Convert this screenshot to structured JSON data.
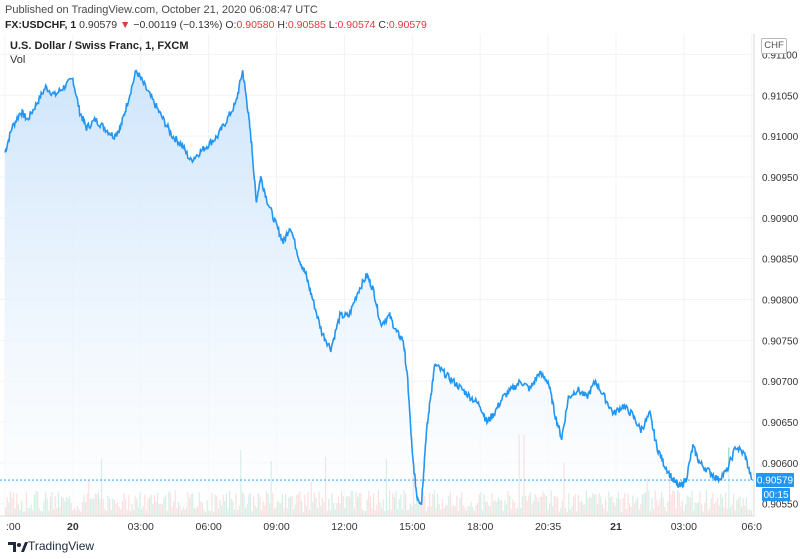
{
  "header": {
    "published": "Published on TradingView.com, October 21, 2020 06:08:47 UTC",
    "symbol": "FX:USDCHF, 1",
    "last": "0.90579",
    "change_arrow": "▼",
    "change": "−0.00119 (−0.13%)",
    "o_label": "O:",
    "o_value": "0.90580",
    "h_label": "H:",
    "h_value": "0.90585",
    "l_label": "L:",
    "l_value": "0.90574",
    "c_label": "C:",
    "c_value": "0.90579"
  },
  "chart_title": "U.S. Dollar / Swiss Franc, 1, FXCM",
  "volume_label": "Vol",
  "currency": "CHF",
  "price_tag": "0.90579",
  "countdown": "00:15",
  "brand": "TradingView",
  "colors": {
    "line": "#2196f3",
    "fill_top": "#cfe5fb",
    "vol_up": "#7fc9b0",
    "vol_down": "#f19b9b",
    "tag_bg": "#2196f3"
  },
  "chart_data": {
    "type": "area",
    "title": "U.S. Dollar / Swiss Franc, 1, FXCM",
    "xlabel": "",
    "ylabel": "",
    "x_ticks": [
      ":00",
      "20",
      "03:00",
      "06:00",
      "09:00",
      "12:00",
      "15:00",
      "18:00",
      "20:35",
      "21",
      "03:00",
      "06:0"
    ],
    "y_ticks": [
      "0.91100",
      "0.91050",
      "0.91000",
      "0.90950",
      "0.90900",
      "0.90850",
      "0.90800",
      "0.90750",
      "0.90700",
      "0.90650",
      "0.90600",
      "0.90550"
    ],
    "ylim": [
      0.90535,
      0.91125
    ],
    "x_range_hours": [
      -3,
      30.1
    ],
    "grid": true,
    "series": [
      {
        "values": [
          [
            -3.0,
            0.9098
          ],
          [
            -2.7,
            0.9101
          ],
          [
            -2.3,
            0.9103
          ],
          [
            -2.0,
            0.9102
          ],
          [
            -1.6,
            0.9104
          ],
          [
            -1.2,
            0.9106
          ],
          [
            -0.8,
            0.9105
          ],
          [
            -0.4,
            0.9106
          ],
          [
            0.0,
            0.9107
          ],
          [
            0.3,
            0.9103
          ],
          [
            0.6,
            0.9101
          ],
          [
            1.0,
            0.9102
          ],
          [
            1.4,
            0.9101
          ],
          [
            1.8,
            0.91
          ],
          [
            2.1,
            0.9101
          ],
          [
            2.4,
            0.9104
          ],
          [
            2.8,
            0.9108
          ],
          [
            3.2,
            0.9106
          ],
          [
            3.6,
            0.9104
          ],
          [
            4.0,
            0.9102
          ],
          [
            4.4,
            0.91
          ],
          [
            4.8,
            0.9099
          ],
          [
            5.2,
            0.9097
          ],
          [
            5.6,
            0.9098
          ],
          [
            6.0,
            0.9099
          ],
          [
            6.4,
            0.91
          ],
          [
            6.8,
            0.9102
          ],
          [
            7.2,
            0.9104
          ],
          [
            7.5,
            0.9108
          ],
          [
            7.7,
            0.9104
          ],
          [
            7.9,
            0.9099
          ],
          [
            8.1,
            0.9092
          ],
          [
            8.3,
            0.9095
          ],
          [
            8.6,
            0.9092
          ],
          [
            9.0,
            0.9089
          ],
          [
            9.3,
            0.9087
          ],
          [
            9.6,
            0.9089
          ],
          [
            10.0,
            0.9085
          ],
          [
            10.3,
            0.9083
          ],
          [
            10.6,
            0.908
          ],
          [
            11.0,
            0.9076
          ],
          [
            11.4,
            0.9074
          ],
          [
            11.8,
            0.9078
          ],
          [
            12.2,
            0.9078
          ],
          [
            12.6,
            0.9081
          ],
          [
            13.0,
            0.9083
          ],
          [
            13.3,
            0.9081
          ],
          [
            13.6,
            0.9077
          ],
          [
            14.0,
            0.9078
          ],
          [
            14.3,
            0.9076
          ],
          [
            14.6,
            0.9075
          ],
          [
            14.8,
            0.907
          ],
          [
            15.0,
            0.9061
          ],
          [
            15.2,
            0.9056
          ],
          [
            15.4,
            0.9055
          ],
          [
            15.6,
            0.9063
          ],
          [
            15.8,
            0.9068
          ],
          [
            16.0,
            0.9072
          ],
          [
            16.4,
            0.9071
          ],
          [
            16.8,
            0.907
          ],
          [
            17.2,
            0.9069
          ],
          [
            17.6,
            0.9068
          ],
          [
            18.0,
            0.9067
          ],
          [
            18.3,
            0.9065
          ],
          [
            18.6,
            0.9066
          ],
          [
            19.0,
            0.9068
          ],
          [
            19.4,
            0.9069
          ],
          [
            19.8,
            0.907
          ],
          [
            20.2,
            0.9069
          ],
          [
            20.6,
            0.9071
          ],
          [
            21.0,
            0.907
          ],
          [
            21.3,
            0.9066
          ],
          [
            21.6,
            0.9063
          ],
          [
            21.9,
            0.9068
          ],
          [
            22.3,
            0.9069
          ],
          [
            22.7,
            0.9068
          ],
          [
            23.1,
            0.907
          ],
          [
            23.5,
            0.9068
          ],
          [
            23.9,
            0.9066
          ],
          [
            24.3,
            0.9067
          ],
          [
            24.7,
            0.9066
          ],
          [
            25.1,
            0.9064
          ],
          [
            25.5,
            0.9066
          ],
          [
            25.8,
            0.9062
          ],
          [
            26.1,
            0.906
          ],
          [
            26.5,
            0.9058
          ],
          [
            26.8,
            0.9057
          ],
          [
            27.1,
            0.9058
          ],
          [
            27.4,
            0.9062
          ],
          [
            27.7,
            0.906
          ],
          [
            28.1,
            0.9059
          ],
          [
            28.5,
            0.9058
          ],
          [
            28.9,
            0.9059
          ],
          [
            29.3,
            0.9062
          ],
          [
            29.7,
            0.9061
          ],
          [
            30.0,
            0.90579
          ]
        ]
      }
    ]
  }
}
